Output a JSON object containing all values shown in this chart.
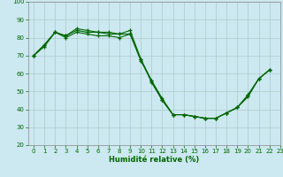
{
  "xlabel": "Humidité relative (%)",
  "bg_color": "#cce8f0",
  "grid_color": "#aacccc",
  "line_color": "#006600",
  "xlim": [
    -0.5,
    23
  ],
  "ylim": [
    20,
    100
  ],
  "yticks": [
    20,
    30,
    40,
    50,
    60,
    70,
    80,
    90,
    100
  ],
  "xticks": [
    0,
    1,
    2,
    3,
    4,
    5,
    6,
    7,
    8,
    9,
    10,
    11,
    12,
    13,
    14,
    15,
    16,
    17,
    18,
    19,
    20,
    21,
    22,
    23
  ],
  "line1_x": [
    0,
    1,
    2,
    3,
    4,
    5,
    6,
    7,
    8,
    9,
    10,
    11,
    12,
    13,
    14,
    15,
    16,
    17,
    18,
    19,
    20,
    21,
    22
  ],
  "line1_y": [
    70,
    76,
    83,
    81,
    85,
    84,
    83,
    83,
    82,
    84,
    68,
    55,
    45,
    37,
    37,
    36,
    35,
    35,
    38,
    41,
    48,
    57,
    62
  ],
  "line2_x": [
    0,
    1,
    2,
    3,
    4,
    5,
    6,
    7,
    8,
    9,
    10,
    11,
    12,
    13,
    14,
    15,
    16,
    17,
    18,
    19,
    20,
    21,
    22
  ],
  "line2_y": [
    70,
    76,
    83,
    81,
    84,
    83,
    83,
    82,
    82,
    82,
    68,
    56,
    46,
    37,
    37,
    36,
    35,
    35,
    38,
    41,
    48,
    57,
    62
  ],
  "line3_x": [
    0,
    1,
    2,
    3,
    4,
    5,
    6,
    7,
    8,
    9,
    10,
    11,
    12,
    13,
    14,
    15,
    16,
    17,
    18,
    19,
    20,
    21,
    22
  ],
  "line3_y": [
    70,
    75,
    83,
    80,
    83,
    82,
    81,
    81,
    80,
    82,
    67,
    56,
    45,
    37,
    37,
    36,
    35,
    35,
    38,
    41,
    47,
    57,
    62
  ]
}
